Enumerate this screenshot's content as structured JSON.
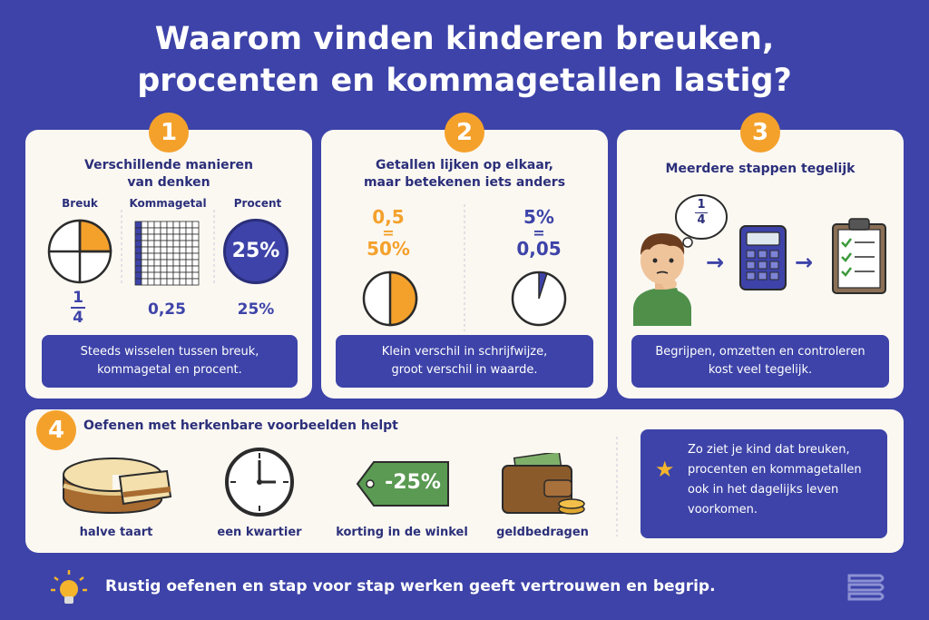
{
  "title_line1": "Waarom vinden kinderen breuken,",
  "title_line2": "procenten en kommagetallen lastig?",
  "card1": {
    "number": "1",
    "title_line1": "Verschillende manieren",
    "title_line2": "van denken",
    "col_breuk": "Breuk",
    "col_komma": "Kommagetal",
    "col_procent": "Procent",
    "fraction_num": "1",
    "fraction_den": "4",
    "komma_value": "0,25",
    "procent_circle": "25%",
    "procent_value": "25%",
    "caption_line1": "Steeds wisselen tussen breuk,",
    "caption_line2": "kommagetal en procent."
  },
  "card2": {
    "number": "2",
    "title_line1": "Getallen lijken op elkaar,",
    "title_line2": "maar betekenen iets anders",
    "left_top": "0,5",
    "left_eq": "=",
    "left_bottom": "50%",
    "right_top": "5%",
    "right_eq": "=",
    "right_bottom": "0,05",
    "caption_line1": "Klein verschil in schrijfwijze,",
    "caption_line2": "groot verschil in waarde."
  },
  "card3": {
    "number": "3",
    "title": "Meerdere stappen tegelijk",
    "thought_num": "1",
    "thought_den": "4",
    "caption_line1": "Begrijpen, omzetten en controleren",
    "caption_line2": "kost veel tegelijk."
  },
  "card4": {
    "number": "4",
    "title": "Oefenen met herkenbare voorbeelden helpt",
    "items": [
      {
        "label": "halve taart",
        "icon": "cake-icon"
      },
      {
        "label": "een kwartier",
        "icon": "clock-icon"
      },
      {
        "label": "korting in de winkel",
        "icon": "price-tag-icon"
      },
      {
        "label": "geldbedragen",
        "icon": "wallet-icon"
      }
    ],
    "tag_text": "-25%",
    "tip_line1": "Zo ziet je kind dat breuken,",
    "tip_line2": "procenten en kommagetallen",
    "tip_line3": "ook in het dagelijks leven",
    "tip_line4": "voorkomen."
  },
  "footer": "Rustig oefenen en stap voor stap werken geeft vertrouwen en begrip.",
  "colors": {
    "background": "#3d43a8",
    "accent": "#f4a12c",
    "card": "#fbf8f2"
  }
}
